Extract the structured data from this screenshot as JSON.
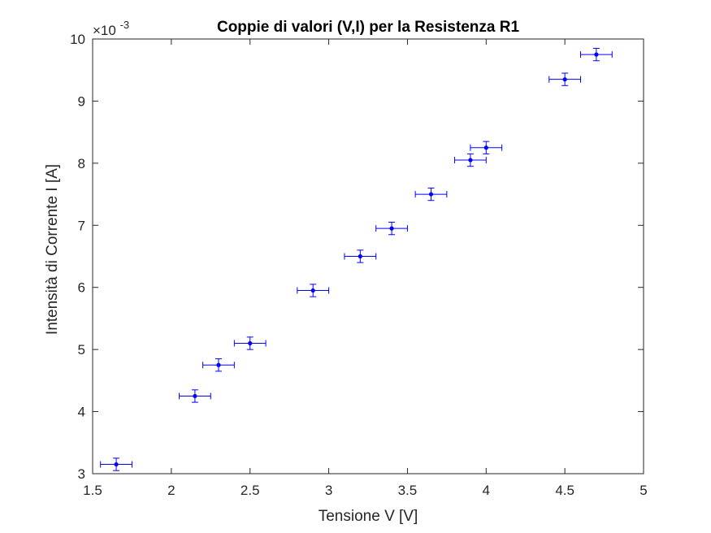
{
  "chart_data": {
    "type": "scatter",
    "title": "Coppie di valori (V,I) per la Resistenza R1",
    "xlabel": "Tensione V [V]",
    "ylabel": "Intensità di Corrente I [A]",
    "y_exponent_base": "×10",
    "y_exponent_power": "-3",
    "xlim": [
      1.5,
      5
    ],
    "ylim": [
      3,
      10
    ],
    "xticks": [
      "1.5",
      "2",
      "2.5",
      "3",
      "3.5",
      "4",
      "4.5",
      "5"
    ],
    "yticks": [
      "3",
      "4",
      "5",
      "6",
      "7",
      "8",
      "9",
      "10"
    ],
    "grid": false,
    "box": true,
    "marker_color": "#0000ff",
    "axis_color": "#262626",
    "x_error": 0.1,
    "y_error": 0.1,
    "series": [
      {
        "x": [
          1.65,
          2.15,
          2.3,
          2.5,
          2.9,
          3.2,
          3.4,
          3.65,
          3.9,
          4.0,
          4.5,
          4.7
        ],
        "y": [
          3.15,
          4.25,
          4.75,
          5.1,
          5.95,
          6.5,
          6.95,
          7.5,
          8.05,
          8.25,
          9.35,
          9.75
        ]
      }
    ]
  }
}
